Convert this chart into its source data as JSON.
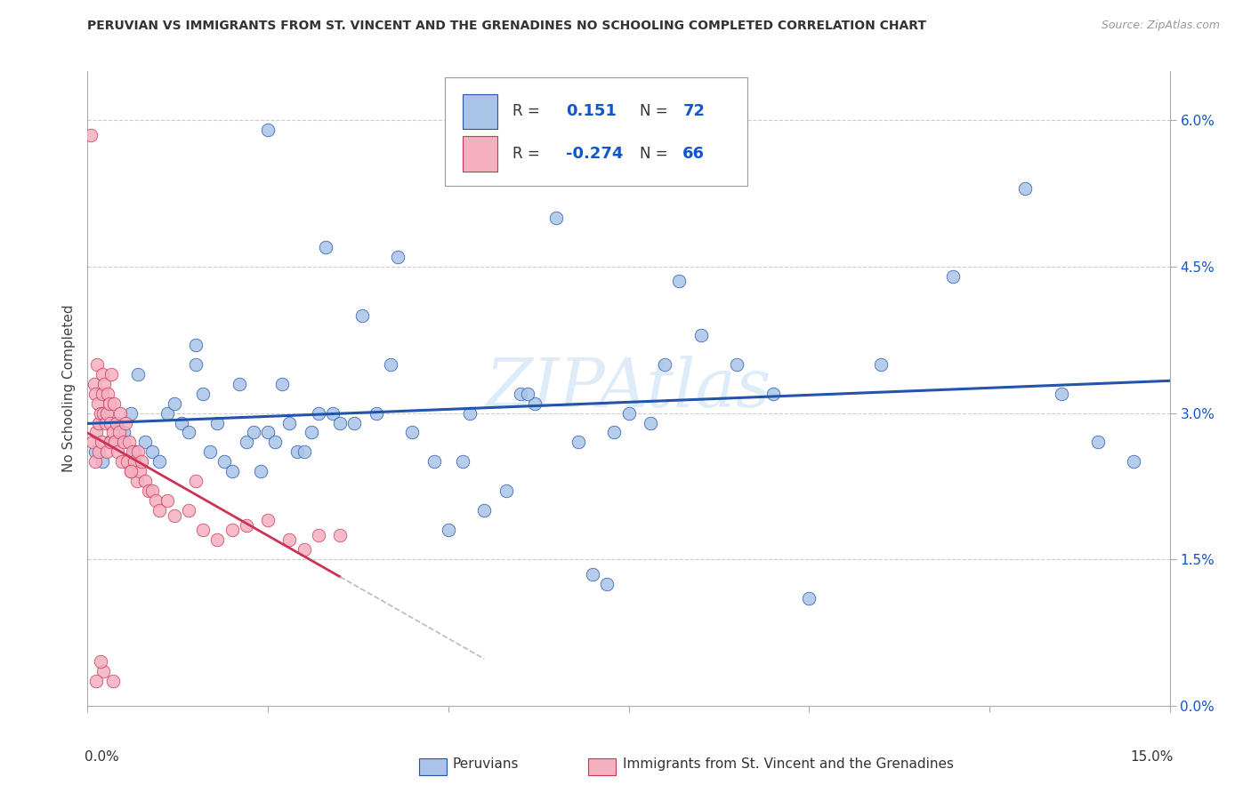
{
  "title": "PERUVIAN VS IMMIGRANTS FROM ST. VINCENT AND THE GRENADINES NO SCHOOLING COMPLETED CORRELATION CHART",
  "source": "Source: ZipAtlas.com",
  "ylabel": "No Schooling Completed",
  "blue_R": 0.151,
  "blue_N": 72,
  "pink_R": -0.274,
  "pink_N": 66,
  "blue_color": "#aac4e8",
  "pink_color": "#f5b0c0",
  "blue_line_color": "#2255aa",
  "pink_line_color": "#cc3355",
  "watermark": "ZIPAtlas",
  "xlim": [
    0.0,
    15.0
  ],
  "ylim": [
    0.0,
    6.5
  ],
  "yticks": [
    0.0,
    1.5,
    3.0,
    4.5,
    6.0
  ],
  "ytick_labels": [
    "0.0%",
    "1.5%",
    "3.0%",
    "4.5%",
    "6.0%"
  ],
  "legend_R_color": "#1155cc",
  "legend_text_color": "#333333",
  "blue_points_x": [
    0.1,
    0.2,
    0.3,
    0.4,
    0.5,
    0.6,
    0.65,
    0.7,
    0.8,
    0.9,
    1.0,
    1.1,
    1.2,
    1.3,
    1.4,
    1.5,
    1.6,
    1.7,
    1.8,
    1.9,
    2.0,
    2.1,
    2.2,
    2.3,
    2.4,
    2.5,
    2.6,
    2.7,
    2.8,
    2.9,
    3.0,
    3.1,
    3.2,
    3.4,
    3.5,
    3.7,
    3.8,
    4.0,
    4.2,
    4.5,
    4.8,
    5.0,
    5.2,
    5.5,
    5.8,
    6.0,
    6.2,
    6.5,
    6.8,
    7.0,
    7.2,
    7.5,
    7.8,
    8.0,
    8.5,
    9.0,
    9.5,
    10.0,
    11.0,
    12.0,
    13.0,
    13.5,
    14.0,
    14.5,
    5.3,
    6.1,
    7.3,
    8.2,
    4.3,
    3.3,
    2.5,
    1.5
  ],
  "blue_points_y": [
    2.6,
    2.5,
    2.7,
    2.9,
    2.8,
    3.0,
    2.6,
    3.4,
    2.7,
    2.6,
    2.5,
    3.0,
    3.1,
    2.9,
    2.8,
    3.5,
    3.2,
    2.6,
    2.9,
    2.5,
    2.4,
    3.3,
    2.7,
    2.8,
    2.4,
    2.8,
    2.7,
    3.3,
    2.9,
    2.6,
    2.6,
    2.8,
    3.0,
    3.0,
    2.9,
    2.9,
    4.0,
    3.0,
    3.5,
    2.8,
    2.5,
    1.8,
    2.5,
    2.0,
    2.2,
    3.2,
    3.1,
    5.0,
    2.7,
    1.35,
    1.25,
    3.0,
    2.9,
    3.5,
    3.8,
    3.5,
    3.2,
    1.1,
    3.5,
    4.4,
    5.3,
    3.2,
    2.7,
    2.5,
    3.0,
    3.2,
    2.8,
    4.35,
    4.6,
    4.7,
    5.9,
    3.7
  ],
  "pink_points_x": [
    0.05,
    0.07,
    0.09,
    0.1,
    0.11,
    0.12,
    0.13,
    0.14,
    0.15,
    0.16,
    0.18,
    0.19,
    0.2,
    0.21,
    0.22,
    0.23,
    0.25,
    0.26,
    0.27,
    0.28,
    0.3,
    0.31,
    0.32,
    0.33,
    0.35,
    0.36,
    0.38,
    0.4,
    0.42,
    0.44,
    0.45,
    0.48,
    0.5,
    0.52,
    0.55,
    0.58,
    0.6,
    0.62,
    0.65,
    0.68,
    0.7,
    0.72,
    0.75,
    0.8,
    0.85,
    0.9,
    0.95,
    1.0,
    1.1,
    1.2,
    1.4,
    1.6,
    1.8,
    2.0,
    2.2,
    2.5,
    2.8,
    3.0,
    3.2,
    3.5,
    1.5,
    0.6,
    0.35,
    0.22,
    0.18,
    0.12
  ],
  "pink_points_y": [
    5.85,
    2.7,
    3.3,
    2.5,
    3.2,
    2.8,
    3.5,
    3.1,
    2.6,
    2.9,
    3.0,
    2.7,
    3.2,
    3.4,
    3.0,
    3.3,
    2.9,
    2.6,
    3.0,
    3.2,
    3.1,
    2.7,
    2.9,
    3.4,
    2.8,
    3.1,
    2.7,
    2.9,
    2.6,
    2.8,
    3.0,
    2.5,
    2.7,
    2.9,
    2.5,
    2.7,
    2.4,
    2.6,
    2.5,
    2.3,
    2.6,
    2.4,
    2.5,
    2.3,
    2.2,
    2.2,
    2.1,
    2.0,
    2.1,
    1.95,
    2.0,
    1.8,
    1.7,
    1.8,
    1.85,
    1.9,
    1.7,
    1.6,
    1.75,
    1.75,
    2.3,
    2.4,
    0.25,
    0.35,
    0.45,
    0.25
  ]
}
